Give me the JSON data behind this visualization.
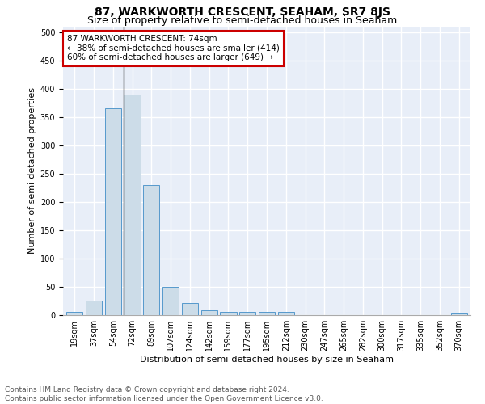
{
  "title": "87, WARKWORTH CRESCENT, SEAHAM, SR7 8JS",
  "subtitle": "Size of property relative to semi-detached houses in Seaham",
  "xlabel": "Distribution of semi-detached houses by size in Seaham",
  "ylabel": "Number of semi-detached properties",
  "bins": [
    "19sqm",
    "37sqm",
    "54sqm",
    "72sqm",
    "89sqm",
    "107sqm",
    "124sqm",
    "142sqm",
    "159sqm",
    "177sqm",
    "195sqm",
    "212sqm",
    "230sqm",
    "247sqm",
    "265sqm",
    "282sqm",
    "300sqm",
    "317sqm",
    "335sqm",
    "352sqm",
    "370sqm"
  ],
  "counts": [
    5,
    25,
    365,
    390,
    230,
    50,
    21,
    9,
    5,
    5,
    5,
    5,
    0,
    0,
    0,
    0,
    0,
    0,
    0,
    0,
    4
  ],
  "bar_color": "#ccdce8",
  "bar_edge_color": "#5599cc",
  "property_size_sqm": 74,
  "property_bin_index": 3,
  "pct_smaller": 38,
  "count_smaller": 414,
  "pct_larger": 60,
  "count_larger": 649,
  "vline_color": "#222222",
  "annotation_box_edge_color": "#cc0000",
  "annotation_box_face_color": "#ffffff",
  "ylim": [
    0,
    510
  ],
  "yticks": [
    0,
    50,
    100,
    150,
    200,
    250,
    300,
    350,
    400,
    450,
    500
  ],
  "footnote": "Contains HM Land Registry data © Crown copyright and database right 2024.\nContains public sector information licensed under the Open Government Licence v3.0.",
  "bg_color": "#e8eef8",
  "grid_color": "#ffffff",
  "title_fontsize": 10,
  "subtitle_fontsize": 9,
  "axis_label_fontsize": 8,
  "tick_fontsize": 7,
  "annotation_fontsize": 7.5,
  "footnote_fontsize": 6.5
}
